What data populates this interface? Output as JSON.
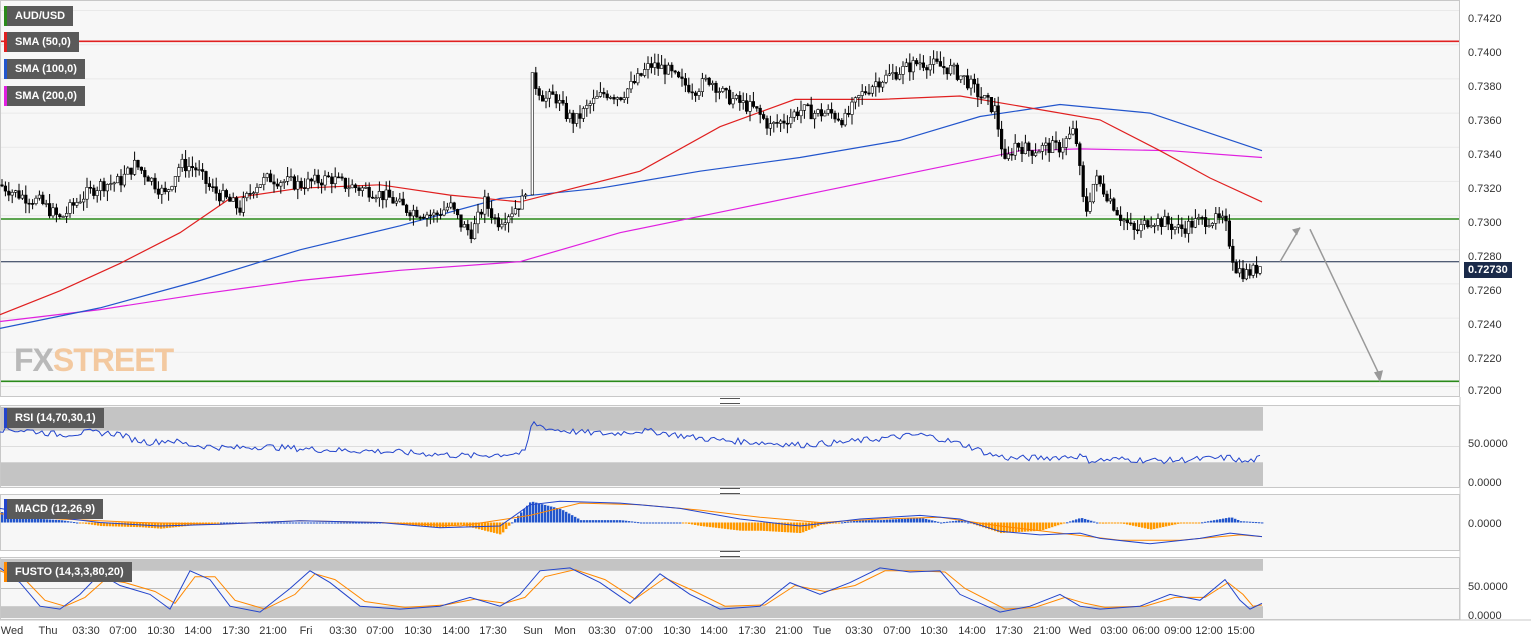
{
  "legend": {
    "pair": "AUD/USD",
    "sma50": "SMA (50,0)",
    "sma100": "SMA (100,0)",
    "sma200": "SMA (200,0)",
    "rsi": "RSI (14,70,30,1)",
    "macd": "MACD (12,26,9)",
    "fusto": "FUSTO (14,3,3,80,20)"
  },
  "colors": {
    "sma50": "#e02020",
    "sma100": "#2255cc",
    "sma200": "#e020e0",
    "level": "#2a8a1a",
    "resistance": "#e02020",
    "current": "#1a2a4a",
    "arrow": "#999999",
    "rsi": "#2244cc",
    "macd_line": "#2244cc",
    "signal_line": "#ff8800",
    "hist_pos": "#2255cc",
    "hist_neg": "#ff9900",
    "fusto_k": "#2244cc",
    "fusto_d": "#ff8800"
  },
  "watermark": {
    "part1": "FX",
    "part2": "STREET"
  },
  "price_axis": {
    "ticks": [
      "0.7420",
      "0.7400",
      "0.7380",
      "0.7360",
      "0.7340",
      "0.7320",
      "0.7300",
      "0.7280",
      "0.7260",
      "0.7240",
      "0.7220",
      "0.7200"
    ],
    "current_price": "0.72730"
  },
  "rsi_axis": {
    "ticks": [
      "50.0000",
      "0.0000"
    ]
  },
  "macd_axis": {
    "ticks": [
      "0.0000"
    ]
  },
  "fusto_axis": {
    "ticks": [
      "50.0000",
      "0.0000"
    ]
  },
  "time_axis": {
    "labels": [
      "Wed",
      "Thu",
      "03:30",
      "07:00",
      "10:30",
      "14:00",
      "17:30",
      "21:00",
      "Fri",
      "03:30",
      "07:00",
      "10:30",
      "14:00",
      "17:30",
      "Sun",
      "Mon",
      "03:30",
      "07:00",
      "10:30",
      "14:00",
      "17:30",
      "21:00",
      "Tue",
      "03:30",
      "07:00",
      "10:30",
      "14:00",
      "17:30",
      "21:00",
      "Wed",
      "03:00",
      "06:00",
      "09:00",
      "12:00",
      "15:00"
    ]
  },
  "chart_data": {
    "type": "candlestick",
    "symbol": "AUD/USD",
    "ylim": [
      0.7195,
      0.7425
    ],
    "horizontal_levels": [
      {
        "name": "resistance",
        "value": 0.7402,
        "color": "#e02020"
      },
      {
        "name": "level",
        "value": 0.7298,
        "color": "#2a8a1a"
      },
      {
        "name": "support",
        "value": 0.7203,
        "color": "#2a8a1a"
      },
      {
        "name": "current",
        "value": 0.7273,
        "color": "#1a2a4a"
      }
    ],
    "close_path": [
      [
        0,
        0.7318
      ],
      [
        20,
        0.7312
      ],
      [
        40,
        0.7308
      ],
      [
        60,
        0.7298
      ],
      [
        80,
        0.731
      ],
      [
        100,
        0.7318
      ],
      [
        120,
        0.732
      ],
      [
        135,
        0.733
      ],
      [
        150,
        0.7322
      ],
      [
        165,
        0.7312
      ],
      [
        180,
        0.733
      ],
      [
        195,
        0.7328
      ],
      [
        210,
        0.7316
      ],
      [
        225,
        0.731
      ],
      [
        240,
        0.7304
      ],
      [
        255,
        0.7318
      ],
      [
        270,
        0.7322
      ],
      [
        285,
        0.732
      ],
      [
        300,
        0.7318
      ],
      [
        315,
        0.732
      ],
      [
        330,
        0.7322
      ],
      [
        345,
        0.7318
      ],
      [
        360,
        0.7316
      ],
      [
        375,
        0.7314
      ],
      [
        390,
        0.731
      ],
      [
        405,
        0.7304
      ],
      [
        420,
        0.7302
      ],
      [
        435,
        0.73
      ],
      [
        450,
        0.7306
      ],
      [
        462,
        0.7294
      ],
      [
        472,
        0.729
      ],
      [
        485,
        0.7308
      ],
      [
        497,
        0.7296
      ],
      [
        510,
        0.7302
      ],
      [
        525,
        0.731
      ],
      [
        532,
        0.738
      ],
      [
        545,
        0.7368
      ],
      [
        555,
        0.737
      ],
      [
        565,
        0.736
      ],
      [
        575,
        0.7355
      ],
      [
        590,
        0.7365
      ],
      [
        605,
        0.7372
      ],
      [
        620,
        0.737
      ],
      [
        635,
        0.7378
      ],
      [
        650,
        0.7388
      ],
      [
        665,
        0.7386
      ],
      [
        680,
        0.7378
      ],
      [
        695,
        0.7374
      ],
      [
        710,
        0.738
      ],
      [
        725,
        0.737
      ],
      [
        740,
        0.7366
      ],
      [
        755,
        0.7362
      ],
      [
        770,
        0.7352
      ],
      [
        785,
        0.7356
      ],
      [
        800,
        0.7362
      ],
      [
        815,
        0.736
      ],
      [
        830,
        0.736
      ],
      [
        845,
        0.7356
      ],
      [
        860,
        0.737
      ],
      [
        875,
        0.7378
      ],
      [
        890,
        0.7382
      ],
      [
        905,
        0.7386
      ],
      [
        920,
        0.739
      ],
      [
        935,
        0.7388
      ],
      [
        950,
        0.7386
      ],
      [
        965,
        0.738
      ],
      [
        980,
        0.737
      ],
      [
        995,
        0.7362
      ],
      [
        1005,
        0.733
      ],
      [
        1015,
        0.7342
      ],
      [
        1030,
        0.7338
      ],
      [
        1045,
        0.734
      ],
      [
        1060,
        0.734
      ],
      [
        1075,
        0.735
      ],
      [
        1085,
        0.73
      ],
      [
        1095,
        0.7322
      ],
      [
        1110,
        0.731
      ],
      [
        1120,
        0.73
      ],
      [
        1135,
        0.729
      ],
      [
        1150,
        0.7298
      ],
      [
        1165,
        0.7296
      ],
      [
        1180,
        0.7292
      ],
      [
        1195,
        0.7296
      ],
      [
        1210,
        0.7298
      ],
      [
        1225,
        0.7296
      ],
      [
        1235,
        0.727
      ],
      [
        1245,
        0.7266
      ],
      [
        1255,
        0.7268
      ],
      [
        1263,
        0.7273
      ]
    ],
    "sma50": [
      [
        0,
        0.7242
      ],
      [
        60,
        0.7256
      ],
      [
        120,
        0.7272
      ],
      [
        180,
        0.729
      ],
      [
        230,
        0.731
      ],
      [
        300,
        0.7316
      ],
      [
        380,
        0.7318
      ],
      [
        450,
        0.7312
      ],
      [
        520,
        0.7308
      ],
      [
        560,
        0.7314
      ],
      [
        640,
        0.7326
      ],
      [
        720,
        0.7352
      ],
      [
        795,
        0.7368
      ],
      [
        880,
        0.7368
      ],
      [
        960,
        0.737
      ],
      [
        1040,
        0.7362
      ],
      [
        1100,
        0.7356
      ],
      [
        1160,
        0.7338
      ],
      [
        1210,
        0.7322
      ],
      [
        1262,
        0.7308
      ]
    ],
    "sma100": [
      [
        0,
        0.7234
      ],
      [
        100,
        0.7246
      ],
      [
        200,
        0.7262
      ],
      [
        300,
        0.728
      ],
      [
        400,
        0.7294
      ],
      [
        500,
        0.731
      ],
      [
        600,
        0.7316
      ],
      [
        700,
        0.7326
      ],
      [
        800,
        0.7334
      ],
      [
        900,
        0.7344
      ],
      [
        980,
        0.7358
      ],
      [
        1060,
        0.7365
      ],
      [
        1150,
        0.736
      ],
      [
        1262,
        0.7338
      ]
    ],
    "sma200": [
      [
        0,
        0.7238
      ],
      [
        100,
        0.7245
      ],
      [
        200,
        0.7254
      ],
      [
        300,
        0.7262
      ],
      [
        400,
        0.7268
      ],
      [
        520,
        0.7273
      ],
      [
        620,
        0.729
      ],
      [
        720,
        0.7302
      ],
      [
        820,
        0.7314
      ],
      [
        920,
        0.7326
      ],
      [
        1020,
        0.7338
      ],
      [
        1080,
        0.7339
      ],
      [
        1170,
        0.7338
      ],
      [
        1262,
        0.7334
      ]
    ],
    "projection": [
      [
        1280,
        0.7273
      ],
      [
        1300,
        0.7293
      ],
      [
        1310,
        0.7292
      ],
      [
        1380,
        0.7206
      ]
    ],
    "rsi": {
      "ylim": [
        0,
        100
      ],
      "upper": 70,
      "lower": 30,
      "values": [
        [
          0,
          72
        ],
        [
          30,
          70
        ],
        [
          60,
          65
        ],
        [
          90,
          68
        ],
        [
          120,
          66
        ],
        [
          130,
          60
        ],
        [
          150,
          55
        ],
        [
          170,
          58
        ],
        [
          190,
          52
        ],
        [
          210,
          50
        ],
        [
          230,
          48
        ],
        [
          260,
          50
        ],
        [
          290,
          48
        ],
        [
          320,
          46
        ],
        [
          350,
          45
        ],
        [
          380,
          44
        ],
        [
          410,
          42
        ],
        [
          440,
          40
        ],
        [
          470,
          38
        ],
        [
          500,
          40
        ],
        [
          525,
          42
        ],
        [
          532,
          80
        ],
        [
          550,
          72
        ],
        [
          580,
          68
        ],
        [
          610,
          66
        ],
        [
          640,
          70
        ],
        [
          660,
          68
        ],
        [
          690,
          62
        ],
        [
          720,
          58
        ],
        [
          760,
          55
        ],
        [
          800,
          52
        ],
        [
          840,
          55
        ],
        [
          880,
          60
        ],
        [
          920,
          65
        ],
        [
          940,
          60
        ],
        [
          970,
          50
        ],
        [
          990,
          40
        ],
        [
          1010,
          35
        ],
        [
          1050,
          36
        ],
        [
          1080,
          38
        ],
        [
          1090,
          32
        ],
        [
          1120,
          34
        ],
        [
          1160,
          32
        ],
        [
          1200,
          34
        ],
        [
          1230,
          36
        ],
        [
          1245,
          30
        ],
        [
          1262,
          36
        ]
      ]
    },
    "macd": {
      "ylim": [
        -0.0015,
        0.0015
      ],
      "macd": [
        [
          0,
          0.0008
        ],
        [
          40,
          0.0004
        ],
        [
          100,
          0.0
        ],
        [
          160,
          -0.0002
        ],
        [
          220,
          -0.0001
        ],
        [
          300,
          0.0001
        ],
        [
          380,
          0.0
        ],
        [
          440,
          -0.0003
        ],
        [
          500,
          -0.0002
        ],
        [
          530,
          0.001
        ],
        [
          560,
          0.0012
        ],
        [
          620,
          0.0011
        ],
        [
          680,
          0.0008
        ],
        [
          740,
          0.0002
        ],
        [
          800,
          -0.0002
        ],
        [
          860,
          0.0002
        ],
        [
          920,
          0.0004
        ],
        [
          960,
          0.0002
        ],
        [
          1000,
          -0.0005
        ],
        [
          1040,
          -0.0007
        ],
        [
          1080,
          -0.0006
        ],
        [
          1100,
          -0.0009
        ],
        [
          1150,
          -0.0012
        ],
        [
          1200,
          -0.0009
        ],
        [
          1230,
          -0.0006
        ],
        [
          1262,
          -0.0008
        ]
      ],
      "signal": [
        [
          0,
          0.0005
        ],
        [
          60,
          0.0002
        ],
        [
          140,
          0.0
        ],
        [
          220,
          -0.0001
        ],
        [
          300,
          0.0001
        ],
        [
          380,
          0.0
        ],
        [
          460,
          -0.0002
        ],
        [
          530,
          0.0004
        ],
        [
          580,
          0.0011
        ],
        [
          640,
          0.001
        ],
        [
          700,
          0.0007
        ],
        [
          760,
          0.0003
        ],
        [
          820,
          0.0
        ],
        [
          880,
          0.0002
        ],
        [
          940,
          0.0003
        ],
        [
          1000,
          -0.0002
        ],
        [
          1060,
          -0.0006
        ],
        [
          1120,
          -0.001
        ],
        [
          1180,
          -0.001
        ],
        [
          1240,
          -0.0007
        ],
        [
          1262,
          -0.0008
        ]
      ]
    },
    "fusto": {
      "ylim": [
        0,
        100
      ],
      "upper": 80,
      "lower": 20,
      "k": [
        [
          0,
          85
        ],
        [
          20,
          60
        ],
        [
          40,
          20
        ],
        [
          60,
          15
        ],
        [
          80,
          40
        ],
        [
          100,
          75
        ],
        [
          120,
          55
        ],
        [
          150,
          40
        ],
        [
          170,
          15
        ],
        [
          190,
          80
        ],
        [
          210,
          65
        ],
        [
          230,
          20
        ],
        [
          260,
          10
        ],
        [
          290,
          50
        ],
        [
          310,
          80
        ],
        [
          330,
          60
        ],
        [
          360,
          20
        ],
        [
          400,
          15
        ],
        [
          440,
          20
        ],
        [
          470,
          35
        ],
        [
          500,
          20
        ],
        [
          520,
          40
        ],
        [
          540,
          80
        ],
        [
          570,
          85
        ],
        [
          600,
          60
        ],
        [
          630,
          25
        ],
        [
          660,
          75
        ],
        [
          690,
          40
        ],
        [
          720,
          15
        ],
        [
          760,
          20
        ],
        [
          790,
          60
        ],
        [
          820,
          40
        ],
        [
          850,
          60
        ],
        [
          880,
          85
        ],
        [
          910,
          78
        ],
        [
          940,
          80
        ],
        [
          960,
          40
        ],
        [
          1000,
          10
        ],
        [
          1030,
          20
        ],
        [
          1060,
          40
        ],
        [
          1080,
          20
        ],
        [
          1100,
          15
        ],
        [
          1140,
          20
        ],
        [
          1170,
          40
        ],
        [
          1200,
          30
        ],
        [
          1225,
          65
        ],
        [
          1240,
          30
        ],
        [
          1250,
          15
        ],
        [
          1262,
          25
        ]
      ],
      "d": [
        [
          0,
          80
        ],
        [
          25,
          65
        ],
        [
          45,
          30
        ],
        [
          65,
          20
        ],
        [
          85,
          35
        ],
        [
          105,
          65
        ],
        [
          125,
          60
        ],
        [
          155,
          45
        ],
        [
          175,
          25
        ],
        [
          195,
          70
        ],
        [
          215,
          70
        ],
        [
          235,
          30
        ],
        [
          265,
          15
        ],
        [
          295,
          40
        ],
        [
          315,
          75
        ],
        [
          335,
          65
        ],
        [
          365,
          28
        ],
        [
          405,
          18
        ],
        [
          445,
          22
        ],
        [
          475,
          32
        ],
        [
          505,
          25
        ],
        [
          525,
          35
        ],
        [
          545,
          70
        ],
        [
          575,
          82
        ],
        [
          605,
          65
        ],
        [
          635,
          32
        ],
        [
          665,
          68
        ],
        [
          695,
          45
        ],
        [
          725,
          20
        ],
        [
          765,
          22
        ],
        [
          795,
          55
        ],
        [
          825,
          45
        ],
        [
          855,
          55
        ],
        [
          885,
          80
        ],
        [
          915,
          80
        ],
        [
          945,
          78
        ],
        [
          965,
          50
        ],
        [
          1005,
          15
        ],
        [
          1035,
          18
        ],
        [
          1065,
          35
        ],
        [
          1085,
          25
        ],
        [
          1105,
          18
        ],
        [
          1145,
          20
        ],
        [
          1175,
          35
        ],
        [
          1205,
          35
        ],
        [
          1228,
          60
        ],
        [
          1243,
          40
        ],
        [
          1253,
          20
        ],
        [
          1262,
          22
        ]
      ]
    }
  }
}
